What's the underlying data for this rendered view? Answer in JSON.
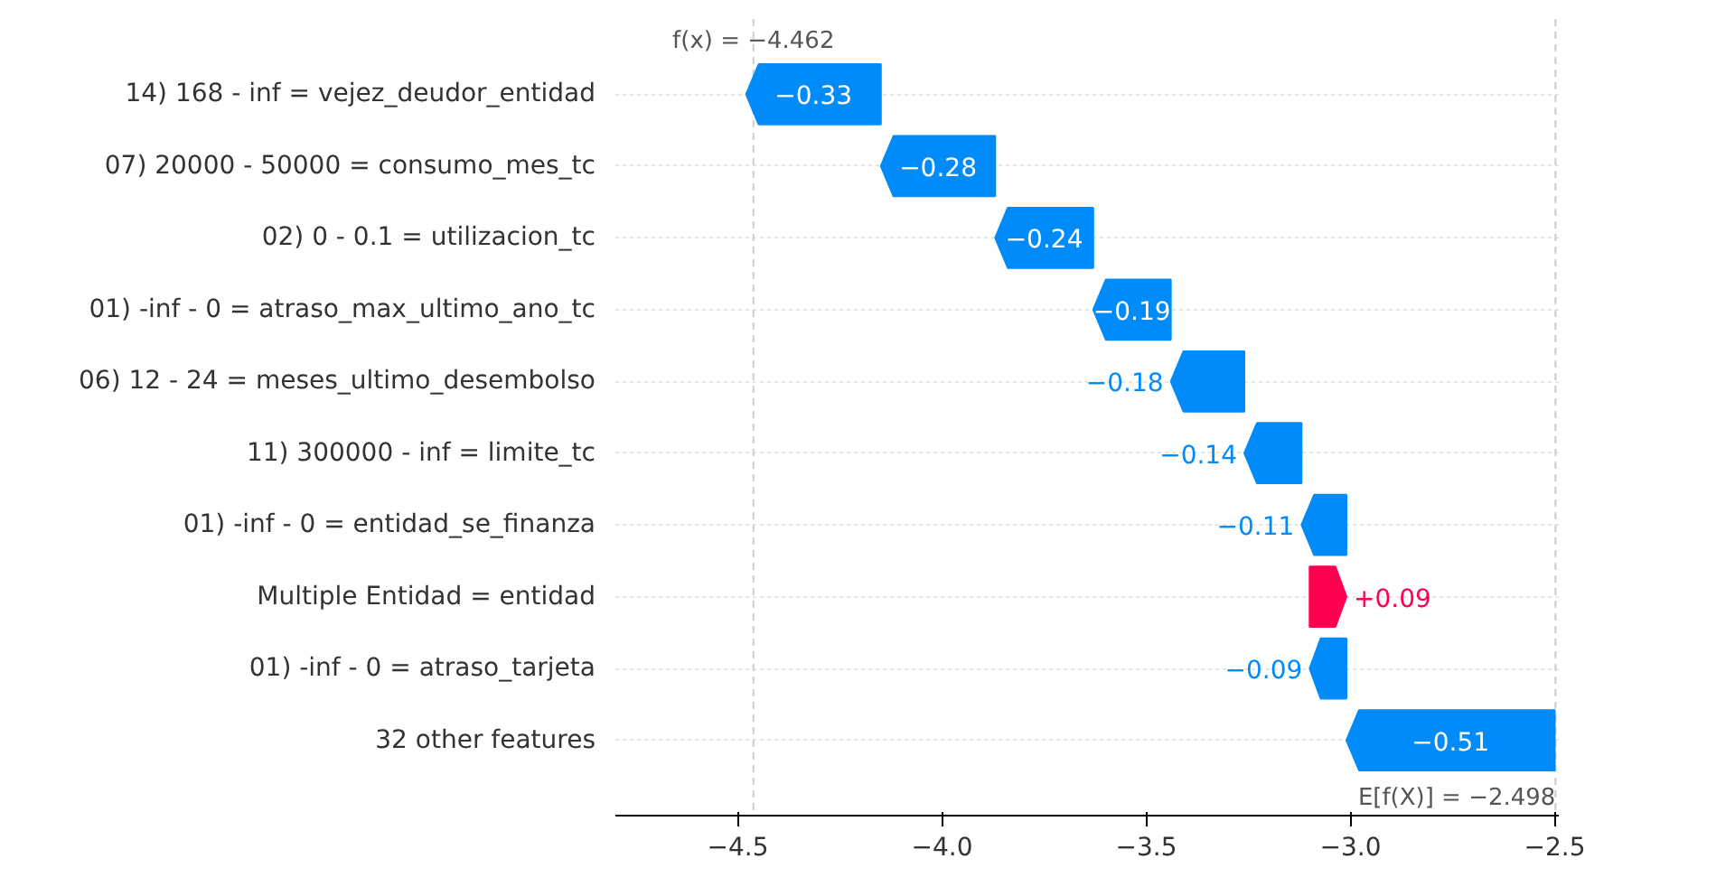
{
  "chart_data": {
    "type": "bar",
    "orientation": "horizontal",
    "categories": [
      "14) 168 - inf = vejez_deudor_entidad",
      "07) 20000 - 50000 = consumo_mes_tc",
      "02) 0 - 0.1 = utilizacion_tc",
      "01) -inf - 0 = atraso_max_ultimo_ano_tc",
      "06) 12 - 24 = meses_ultimo_desembolso",
      "11) 300000 - inf = limite_tc",
      "01) -inf - 0 = entidad_se_finanza",
      "Multiple Entidad = entidad",
      "01) -inf - 0 = atraso_tarjeta",
      "32 other features"
    ],
    "values": [
      -0.33,
      -0.28,
      -0.24,
      -0.19,
      -0.18,
      -0.14,
      -0.11,
      0.09,
      -0.09,
      -0.51
    ],
    "base": [
      -4.15,
      -3.87,
      -3.63,
      -3.44,
      -3.26,
      -3.12,
      -3.01,
      -3.1,
      -3.01,
      -2.5
    ],
    "colors": [
      "#008bfb",
      "#008bfb",
      "#008bfb",
      "#008bfb",
      "#008bfb",
      "#008bfb",
      "#008bfb",
      "#ff0051",
      "#008bfb",
      "#008bfb"
    ],
    "value_labels": [
      "−0.33",
      "−0.28",
      "−0.24",
      "−0.19",
      "−0.18",
      "−0.14",
      "−0.11",
      "+0.09",
      "−0.09",
      "−0.51"
    ],
    "xlim": [
      -4.8,
      -2.49
    ],
    "xticks": [
      {
        "value": -4.5,
        "label": "−4.5"
      },
      {
        "value": -4.0,
        "label": "−4.0"
      },
      {
        "value": -3.5,
        "label": "−3.5"
      },
      {
        "value": -3.0,
        "label": "−3.0"
      },
      {
        "value": -2.5,
        "label": "−2.5"
      }
    ],
    "grid": "y",
    "ref_lines": [
      {
        "axis": "x",
        "value": -4.462,
        "label": "f(x) = −4.462",
        "color": "#cccccc",
        "line_style": "dashed"
      },
      {
        "axis": "x",
        "value": -2.498,
        "label": "E[f(X)] = −2.498",
        "color": "#cccccc",
        "line_style": "dashed"
      }
    ]
  }
}
